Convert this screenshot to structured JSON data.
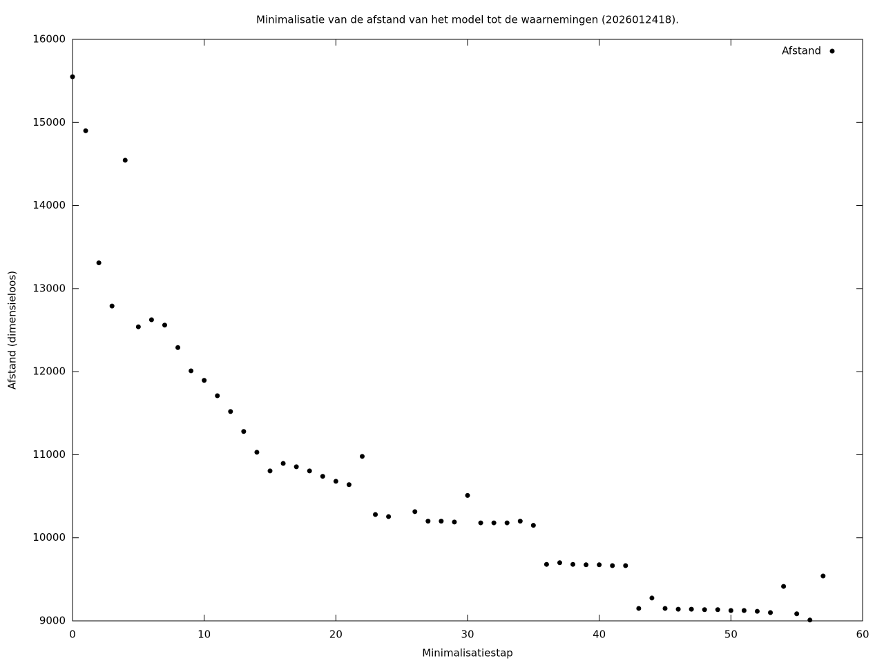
{
  "chart_data": {
    "type": "scatter",
    "title": "Minimalisatie van de afstand van het model tot de waarnemingen (2026012418).",
    "x_label": "Minimalisatiestap",
    "y_label": "Afstand (dimensieloos)",
    "x": [
      0,
      1,
      2,
      3,
      4,
      5,
      6,
      7,
      8,
      9,
      10,
      11,
      12,
      13,
      14,
      15,
      16,
      17,
      18,
      19,
      20,
      21,
      22,
      23,
      24,
      26,
      27,
      28,
      29,
      30,
      31,
      32,
      33,
      34,
      35,
      36,
      37,
      38,
      39,
      40,
      41,
      42,
      43,
      44,
      45,
      46,
      47,
      48,
      49,
      50,
      51,
      52,
      53,
      54,
      55,
      56,
      57
    ],
    "series": [
      {
        "name": "Afstand",
        "color": "#000000",
        "values": [
          15550,
          14900,
          13310,
          12790,
          14545,
          12540,
          12625,
          12560,
          12290,
          12010,
          11895,
          11710,
          11520,
          11280,
          11030,
          10805,
          10895,
          10855,
          10805,
          10740,
          10680,
          10640,
          10980,
          10280,
          10255,
          10315,
          10200,
          10200,
          10190,
          10510,
          10180,
          10180,
          10180,
          10200,
          10150,
          9680,
          9700,
          9680,
          9675,
          9675,
          9665,
          9665,
          9150,
          9275,
          9150,
          9140,
          9140,
          9135,
          9135,
          9125,
          9125,
          9115,
          9100,
          9415,
          9085,
          9010,
          9540
        ]
      }
    ],
    "xlim": [
      0,
      60
    ],
    "xticks": [
      0,
      10,
      20,
      30,
      40,
      50,
      60
    ],
    "ylim": [
      9000,
      16000
    ],
    "yticks": [
      9000,
      10000,
      11000,
      12000,
      13000,
      14000,
      15000,
      16000
    ],
    "grid": false,
    "legend": "top right"
  }
}
